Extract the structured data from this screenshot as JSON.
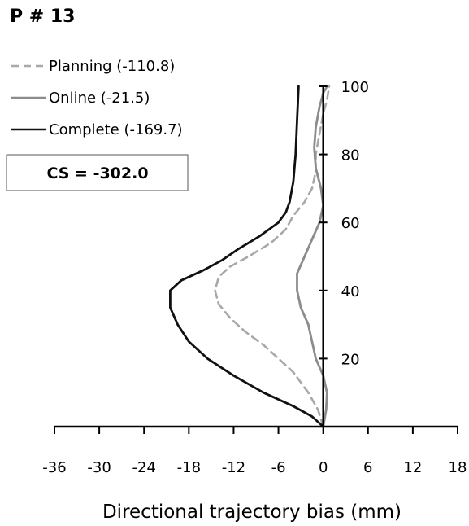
{
  "chart_data": {
    "type": "line",
    "title": "P # 13",
    "xlabel": "Directional trajectory bias (mm)",
    "ylabel": "",
    "xlim": [
      -36,
      18
    ],
    "ylim": [
      0,
      100
    ],
    "x_ticks": [
      -36,
      -30,
      -24,
      -18,
      -12,
      -6,
      0,
      6,
      12,
      18
    ],
    "y_ticks": [
      20,
      40,
      60,
      80,
      100
    ],
    "legend_position": "top-left",
    "grid": false,
    "series": [
      {
        "name": "Planning (-110.8)",
        "color": "#a8a8a8",
        "style": "dashed",
        "points": [
          [
            0,
            0
          ],
          [
            -0.7,
            5
          ],
          [
            -2,
            10
          ],
          [
            -4,
            16
          ],
          [
            -6,
            20
          ],
          [
            -8,
            24
          ],
          [
            -10.5,
            28
          ],
          [
            -12.5,
            32
          ],
          [
            -14,
            36
          ],
          [
            -14.5,
            40
          ],
          [
            -14,
            44
          ],
          [
            -12.5,
            47
          ],
          [
            -10,
            50
          ],
          [
            -7,
            54
          ],
          [
            -5,
            58
          ],
          [
            -4,
            62
          ],
          [
            -2.5,
            66
          ],
          [
            -1.5,
            70
          ],
          [
            -1,
            75
          ],
          [
            -1,
            80
          ],
          [
            -0.5,
            86
          ],
          [
            0,
            92
          ],
          [
            0.5,
            96
          ],
          [
            0.8,
            100
          ]
        ]
      },
      {
        "name": "Online (-21.5)",
        "color": "#8c8c8c",
        "style": "solid",
        "points": [
          [
            0,
            0
          ],
          [
            0.4,
            5
          ],
          [
            0.5,
            10
          ],
          [
            0,
            15
          ],
          [
            -1,
            20
          ],
          [
            -1.5,
            25
          ],
          [
            -2,
            30
          ],
          [
            -3,
            35
          ],
          [
            -3.5,
            40
          ],
          [
            -3.5,
            45
          ],
          [
            -2.5,
            50
          ],
          [
            -1.5,
            55
          ],
          [
            -0.5,
            60
          ],
          [
            0,
            65
          ],
          [
            -0.3,
            70
          ],
          [
            -1,
            76
          ],
          [
            -1.2,
            82
          ],
          [
            -1,
            88
          ],
          [
            -0.5,
            94
          ],
          [
            0,
            98
          ],
          [
            0.5,
            100
          ]
        ]
      },
      {
        "name": "Complete (-169.7)",
        "color": "#111111",
        "style": "solid",
        "points": [
          [
            0,
            0
          ],
          [
            -1.5,
            3
          ],
          [
            -4,
            6
          ],
          [
            -8,
            10
          ],
          [
            -12,
            15
          ],
          [
            -15.5,
            20
          ],
          [
            -18,
            25
          ],
          [
            -19.5,
            30
          ],
          [
            -20.5,
            35
          ],
          [
            -20.5,
            40
          ],
          [
            -19,
            43
          ],
          [
            -16,
            46
          ],
          [
            -13.5,
            49
          ],
          [
            -11.5,
            52
          ],
          [
            -8.5,
            56
          ],
          [
            -6,
            60
          ],
          [
            -5,
            63
          ],
          [
            -4.5,
            66
          ],
          [
            -4,
            72
          ],
          [
            -3.7,
            80
          ],
          [
            -3.5,
            90
          ],
          [
            -3.3,
            100
          ]
        ]
      }
    ],
    "annotation": "CS = -302.0"
  }
}
